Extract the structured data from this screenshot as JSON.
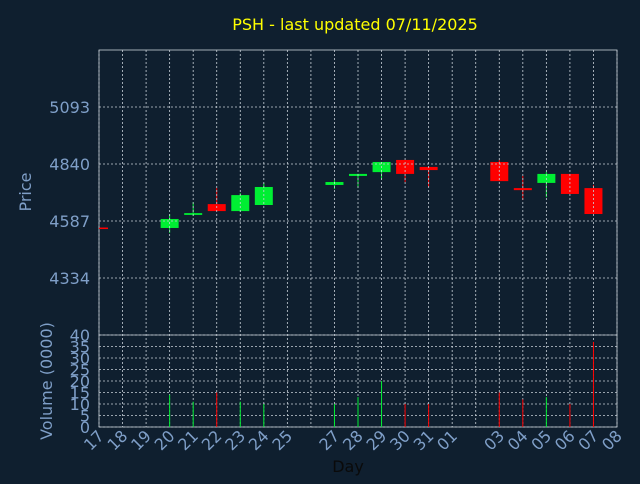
{
  "chart_data": {
    "type": "candlestick",
    "title": "PSH - last updated 07/11/2025",
    "y_label": "Price",
    "volume_label": "Volume (0000)",
    "x_label": "Day",
    "categories": [
      "17",
      "18",
      "19",
      "20",
      "21",
      "22",
      "23",
      "24",
      "25",
      null,
      "27",
      "28",
      "29",
      "30",
      "31",
      "01",
      null,
      "03",
      "04",
      "05",
      "06",
      "07",
      "08"
    ],
    "open": [
      4558,
      null,
      null,
      4556,
      4614,
      4662,
      4631,
      4658,
      null,
      null,
      4747,
      4787,
      4804,
      4858,
      4827,
      null,
      null,
      4849,
      4733,
      4756,
      4796,
      4733,
      null
    ],
    "high": [
      4558,
      null,
      null,
      4618,
      4671,
      4733,
      4711,
      4756,
      null,
      null,
      4769,
      4796,
      4849,
      4858,
      4827,
      null,
      null,
      4858,
      4787,
      4805,
      4796,
      4747,
      null
    ],
    "low": [
      4555,
      null,
      null,
      4534,
      4609,
      4631,
      4627,
      4658,
      null,
      null,
      4729,
      4733,
      4769,
      4760,
      4738,
      null,
      null,
      4764,
      4680,
      4693,
      4707,
      4618,
      null
    ],
    "close": [
      4555,
      null,
      null,
      4596,
      4622,
      4631,
      4702,
      4738,
      null,
      null,
      4760,
      4796,
      4849,
      4796,
      4813,
      null,
      null,
      4764,
      4724,
      4796,
      4707,
      4618,
      null
    ],
    "volume": [
      null,
      null,
      null,
      14,
      11,
      15,
      11,
      10,
      null,
      null,
      10,
      13,
      20,
      10,
      10,
      null,
      null,
      15,
      12,
      13,
      10,
      37,
      null
    ],
    "up_color": "#00ee33",
    "down_color": "#ff0000",
    "ylim": [
      4081,
      5346
    ],
    "yticks": [
      4334,
      4587,
      4840,
      5093
    ],
    "volume_ylim": [
      0,
      40
    ],
    "volume_yticks": [
      0,
      5,
      10,
      15,
      20,
      25,
      30,
      35,
      40
    ],
    "grid": true
  }
}
